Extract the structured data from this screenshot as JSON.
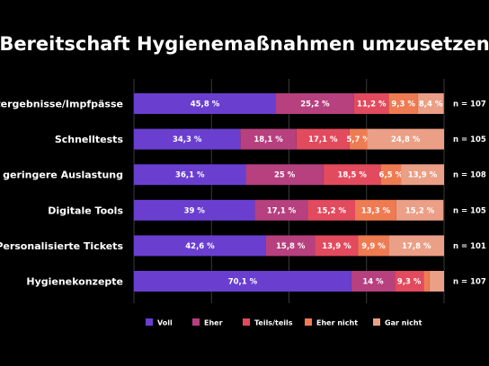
{
  "chart_data": {
    "type": "bar",
    "orientation": "horizontal",
    "stacked": true,
    "title": "Bereitschaft Hygienemaßnahmen umzusetzen",
    "categories": [
      "Testergebnisse/Impfpässe",
      "Schnelltests",
      "geringere Auslastung",
      "Digitale Tools",
      "Personalisierte Tickets",
      "Hygienekonzepte"
    ],
    "n_labels": [
      "n = 107",
      "n = 105",
      "n = 108",
      "n = 105",
      "n = 101",
      "n = 107"
    ],
    "series": [
      {
        "name": "Voll",
        "color": "#6a3fd0",
        "values": [
          45.8,
          34.3,
          36.1,
          39,
          42.6,
          70.1
        ],
        "labels": [
          "45,8 %",
          "34,3 %",
          "36,1 %",
          "39 %",
          "42,6 %",
          "70,1 %"
        ]
      },
      {
        "name": "Eher",
        "color": "#b7407f",
        "values": [
          25.2,
          18.1,
          25,
          17.1,
          15.8,
          14
        ],
        "labels": [
          "25,2 %",
          "18,1 %",
          "25 %",
          "17,1 %",
          "15,8 %",
          "14 %"
        ]
      },
      {
        "name": "Teils/teils",
        "color": "#e24a5e",
        "values": [
          11.2,
          17.1,
          18.5,
          15.2,
          13.9,
          9.3
        ],
        "labels": [
          "11,2 %",
          "17,1 %",
          "18,5 %",
          "15,2 %",
          "13,9 %",
          "9,3 %"
        ]
      },
      {
        "name": "Eher nicht",
        "color": "#ef7b52",
        "values": [
          9.3,
          5.7,
          6.5,
          13.3,
          9.9,
          1.9
        ],
        "labels": [
          "9,3 %",
          "5,7 %",
          "6,5 %",
          "13,3 %",
          "9,9 %",
          ""
        ]
      },
      {
        "name": "Gar nicht",
        "color": "#eb9f86",
        "values": [
          8.4,
          24.8,
          13.9,
          15.2,
          17.8,
          4.7
        ],
        "labels": [
          "8,4 %",
          "24,8 %",
          "13,9 %",
          "15,2 %",
          "17,8 %",
          ""
        ]
      }
    ],
    "xlim": [
      0,
      100
    ],
    "grid": true,
    "legend_position": "bottom"
  }
}
